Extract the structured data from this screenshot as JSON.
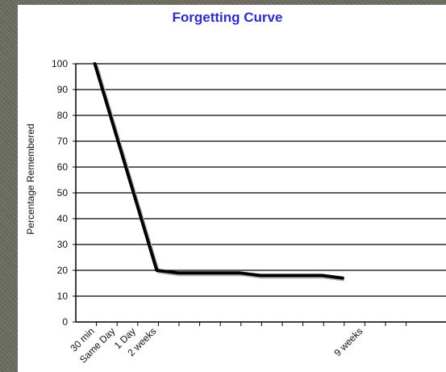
{
  "chart_data": {
    "type": "line",
    "title": "Forgetting Curve",
    "ylabel": "Percentage Remembered",
    "xlabel": "",
    "ylim": [
      0,
      100
    ],
    "yticks": [
      "0",
      "10",
      "20",
      "30",
      "40",
      "50",
      "60",
      "70",
      "80",
      "90",
      "100"
    ],
    "x_slots": 16,
    "categories": [
      {
        "label": "30 min",
        "slot": 1
      },
      {
        "label": "Same Day",
        "slot": 2
      },
      {
        "label": "1 Day",
        "slot": 3
      },
      {
        "label": "2 weeks",
        "slot": 4
      },
      {
        "label": "9 weeks",
        "slot": 14
      }
    ],
    "series": [
      {
        "points": [
          {
            "slot": 1,
            "y": 100
          },
          {
            "slot": 4,
            "y": 20
          },
          {
            "slot": 5,
            "y": 19
          },
          {
            "slot": 8,
            "y": 19
          },
          {
            "slot": 9,
            "y": 18
          },
          {
            "slot": 12,
            "y": 18
          },
          {
            "slot": 13,
            "y": 17
          }
        ]
      }
    ],
    "grid": true,
    "line_color": "#000000"
  }
}
